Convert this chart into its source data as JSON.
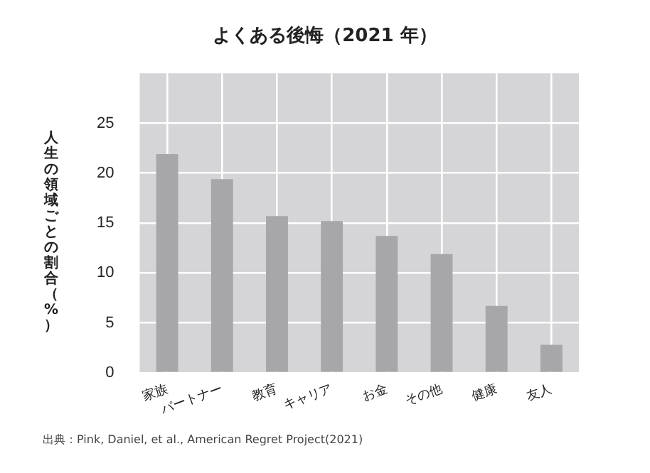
{
  "chart_data": {
    "type": "bar",
    "title": "よくある後悔（2021 年）",
    "ylabel": "人生の領域ごとの割合（%）",
    "categories": [
      "家族",
      "パートナー",
      "教育",
      "キャリア",
      "お金",
      "その他",
      "健康",
      "友人"
    ],
    "values": [
      21.9,
      19.4,
      15.7,
      15.2,
      13.7,
      11.9,
      6.7,
      2.8
    ],
    "color": "#a7a7aa",
    "ylim": [
      0,
      30
    ],
    "yticks": [
      0,
      5,
      10,
      15,
      20,
      25
    ],
    "grid": true,
    "legend": false,
    "annotations": [
      "出典：Pink, Daniel, et al., American Regret Project(2021)"
    ]
  }
}
